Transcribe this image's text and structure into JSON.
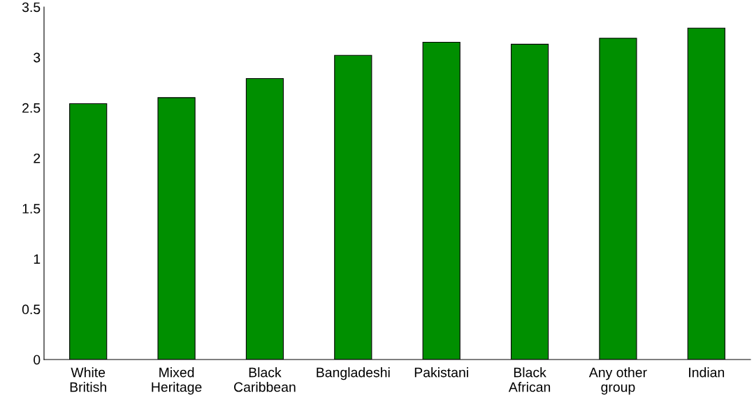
{
  "chart_data": {
    "type": "bar",
    "categories": [
      "White\nBritish",
      "Mixed\nHeritage",
      "Black\nCaribbean",
      "Bangladeshi",
      "Pakistani",
      "Black\nAfrican",
      "Any other\ngroup",
      "Indian"
    ],
    "values": [
      2.54,
      2.6,
      2.79,
      3.02,
      3.15,
      3.13,
      3.19,
      3.29
    ],
    "color": "#008f00",
    "ylim": [
      0,
      3.5
    ],
    "yticks": [
      0,
      0.5,
      1,
      1.5,
      2,
      2.5,
      3,
      3.5
    ],
    "grid": false
  }
}
